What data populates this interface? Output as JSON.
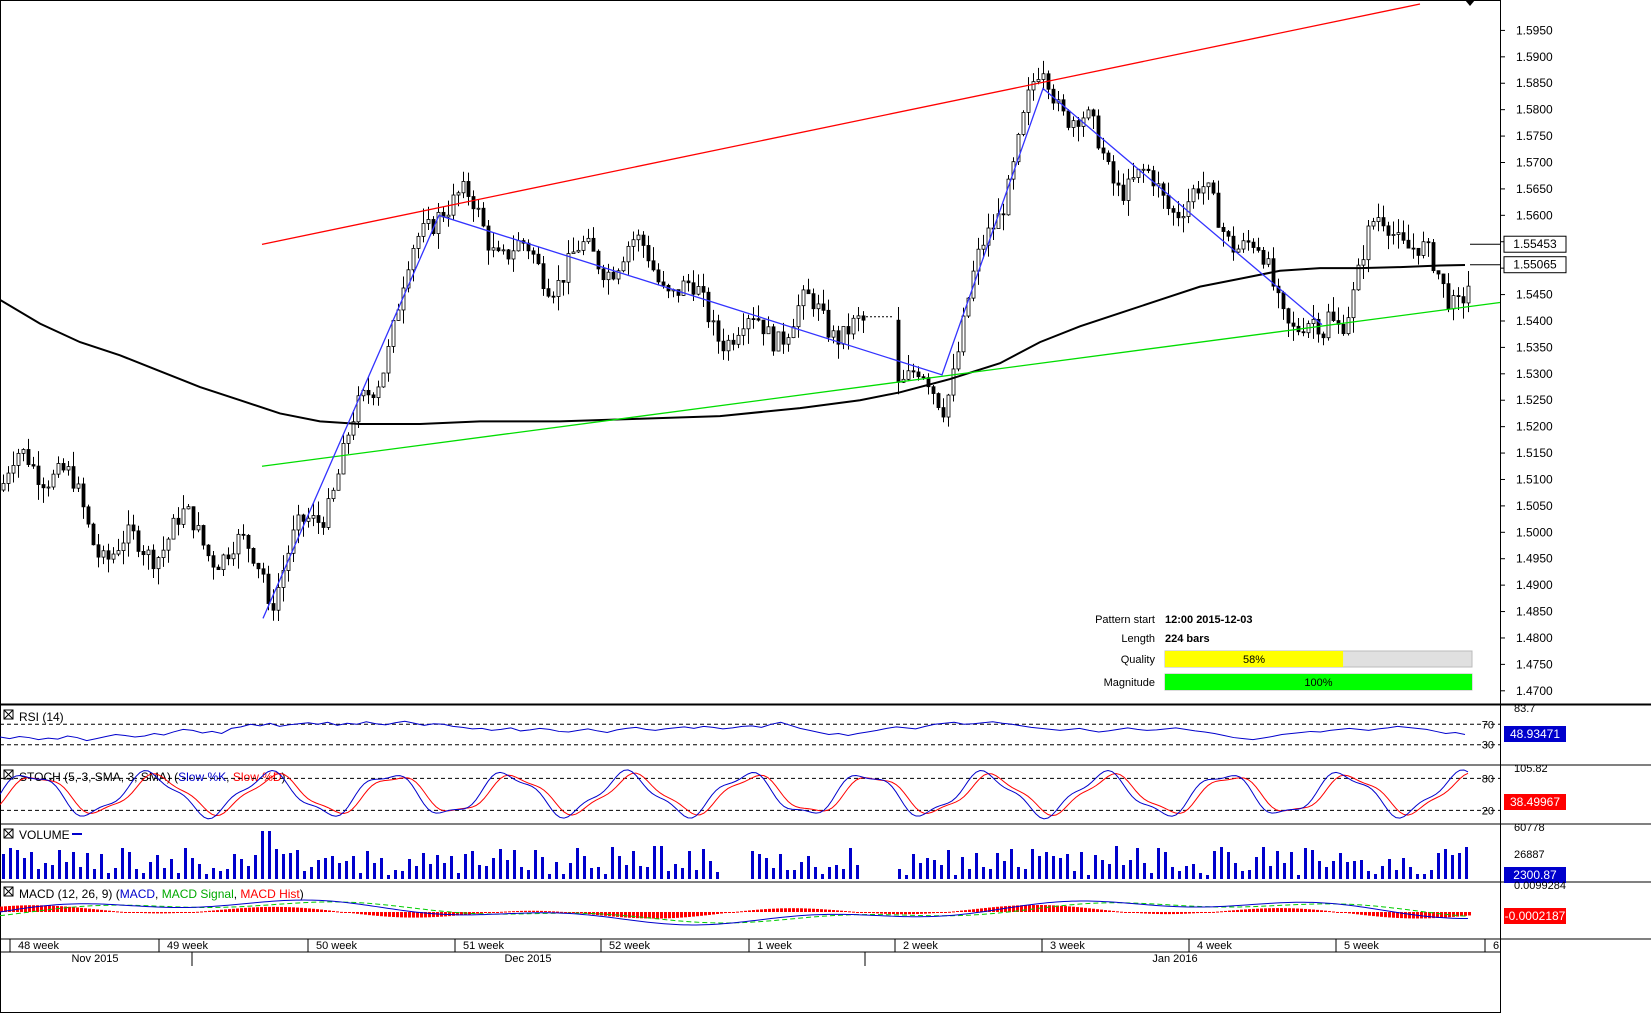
{
  "chart_data": {
    "type": "candlestick",
    "instrument_note": "",
    "y_axis": {
      "min": 1.4675,
      "max": 1.6,
      "ticks": [
        "1.5950",
        "1.5900",
        "1.5850",
        "1.5800",
        "1.5750",
        "1.5700",
        "1.5650",
        "1.5600",
        "1.5550",
        "1.5500",
        "1.5450",
        "1.5400",
        "1.5350",
        "1.5300",
        "1.5250",
        "1.5200",
        "1.5150",
        "1.5100",
        "1.5050",
        "1.5000",
        "1.4950",
        "1.4900",
        "1.4850",
        "1.4800",
        "1.4750",
        "1.4700"
      ],
      "price_labels": [
        {
          "label": "1.55453",
          "value": 1.55453,
          "style": "box"
        },
        {
          "label": "1.55065",
          "value": 1.55065,
          "style": "box"
        }
      ]
    },
    "x_axis": {
      "week_labels": [
        "48 week",
        "49 week",
        "50 week",
        "51 week",
        "52 week",
        "1 week",
        "2 week",
        "3 week",
        "4 week",
        "5 week",
        "6"
      ],
      "month_labels": [
        "Nov 2015",
        "Dec 2015",
        "Jan 2016"
      ]
    },
    "moving_average_curve": [
      [
        0,
        1.544
      ],
      [
        40,
        1.5395
      ],
      [
        80,
        1.536
      ],
      [
        120,
        1.5335
      ],
      [
        160,
        1.5305
      ],
      [
        200,
        1.5275
      ],
      [
        240,
        1.525
      ],
      [
        280,
        1.5225
      ],
      [
        320,
        1.521
      ],
      [
        360,
        1.5205
      ],
      [
        420,
        1.5205
      ],
      [
        480,
        1.521
      ],
      [
        560,
        1.521
      ],
      [
        640,
        1.5215
      ],
      [
        720,
        1.522
      ],
      [
        800,
        1.5235
      ],
      [
        860,
        1.525
      ],
      [
        900,
        1.5265
      ],
      [
        950,
        1.529
      ],
      [
        1000,
        1.532
      ],
      [
        1040,
        1.536
      ],
      [
        1080,
        1.539
      ],
      [
        1120,
        1.5415
      ],
      [
        1160,
        1.544
      ],
      [
        1200,
        1.5465
      ],
      [
        1240,
        1.548
      ],
      [
        1280,
        1.5495
      ],
      [
        1320,
        1.55
      ],
      [
        1360,
        1.55
      ],
      [
        1400,
        1.5502
      ],
      [
        1440,
        1.5505
      ],
      [
        1465,
        1.5506
      ]
    ],
    "resistance_line": {
      "points": [
        [
          262,
          1.5545
        ],
        [
          1420,
          1.6
        ]
      ],
      "color": "#ff0000"
    },
    "support_line": {
      "points": [
        [
          262,
          1.5125
        ],
        [
          1500,
          1.5435
        ]
      ],
      "color": "#00dd00"
    },
    "zigzag": {
      "color": "#3333ff",
      "points": [
        [
          263,
          1.4837
        ],
        [
          439,
          1.56
        ],
        [
          942,
          1.5298
        ],
        [
          1043,
          1.584
        ],
        [
          1322,
          1.5393
        ]
      ]
    },
    "pattern_info": {
      "rows": [
        {
          "label": "Pattern start",
          "value": "12:00 2015-12-03"
        },
        {
          "label": "Length",
          "value": "224 bars"
        },
        {
          "label": "Quality",
          "value": "58%",
          "fraction": 0.58,
          "color": "#ffff00"
        },
        {
          "label": "Magnitude",
          "value": "100%",
          "fraction": 1.0,
          "color": "#00ff00"
        }
      ]
    },
    "indicators": {
      "rsi": {
        "title": "RSI (14)",
        "levels": [
          "70",
          "30"
        ],
        "top_label": "83.7",
        "value": "48.93471",
        "series": [
          45,
          42,
          46,
          44,
          40,
          43,
          41,
          47,
          44,
          38,
          42,
          46,
          50,
          48,
          45,
          47,
          52,
          49,
          55,
          60,
          58,
          53,
          56,
          52,
          62,
          65,
          70,
          67,
          72,
          66,
          69,
          71,
          73,
          70,
          74,
          68,
          72,
          70,
          75,
          71,
          69,
          73,
          76,
          72,
          68,
          71,
          70,
          66,
          64,
          61,
          62,
          58,
          60,
          63,
          57,
          59,
          62,
          60,
          56,
          55,
          58,
          61,
          57,
          54,
          59,
          62,
          64,
          60,
          58,
          61,
          63,
          65,
          62,
          66,
          64,
          61,
          63,
          66,
          67,
          64,
          70,
          74,
          68,
          62,
          58,
          54,
          50,
          52,
          48,
          52,
          55,
          58,
          62,
          65,
          63,
          61,
          66,
          70,
          72,
          74,
          70,
          71,
          73,
          75,
          72,
          70,
          67,
          64,
          62,
          60,
          58,
          60,
          62,
          58,
          55,
          57,
          60,
          63,
          60,
          58,
          59,
          61,
          63,
          60,
          57,
          55,
          52,
          48,
          44,
          42,
          40,
          43,
          46,
          50,
          52,
          54,
          56,
          55,
          58,
          60,
          62,
          60,
          58,
          61,
          63,
          66,
          64,
          62,
          60,
          56,
          52,
          54,
          50
        ]
      },
      "stoch": {
        "title": "STOCH (5, 3, SMA, 3, SMA)",
        "legend_k": "Slow %K",
        "legend_d": "Slow %D",
        "levels": [
          "80",
          "20"
        ],
        "top_label": "105.82",
        "value": "38.49967"
      },
      "volume": {
        "title": "VOLUME",
        "top_label": "60778",
        "mid_label": "26887",
        "value": "2300.87"
      },
      "macd": {
        "title": "MACD (12, 26, 9)",
        "legend_macd": "MACD",
        "legend_signal": "MACD Signal",
        "legend_hist": "MACD Hist",
        "top_label": "0.0099284",
        "value": "-0.0002187"
      }
    }
  }
}
